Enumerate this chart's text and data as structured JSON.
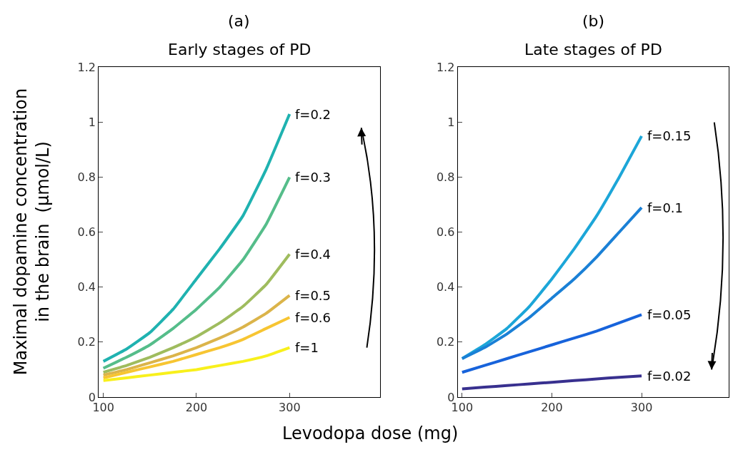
{
  "chart_data": [
    {
      "type": "line",
      "title": "(a)",
      "subtitle": "Early stages of PD",
      "xlabel": "Levodopa dose (mg)",
      "ylabel": "Maximal dopamine concentration\nin the brain  (μmol/L)",
      "x": [
        100,
        125,
        150,
        175,
        200,
        225,
        250,
        275,
        300
      ],
      "series": [
        {
          "name": "f=0.2",
          "color": "#1fb2b0",
          "values": [
            0.13,
            0.175,
            0.235,
            0.32,
            0.43,
            0.54,
            0.66,
            0.83,
            1.03
          ]
        },
        {
          "name": "f=0.3",
          "color": "#55bd8a",
          "values": [
            0.105,
            0.145,
            0.19,
            0.25,
            0.32,
            0.4,
            0.5,
            0.63,
            0.8
          ]
        },
        {
          "name": "f=0.4",
          "color": "#9fbc5e",
          "values": [
            0.09,
            0.115,
            0.145,
            0.18,
            0.22,
            0.27,
            0.33,
            0.41,
            0.52
          ]
        },
        {
          "name": "f=0.5",
          "color": "#dbb44a",
          "values": [
            0.08,
            0.1,
            0.125,
            0.15,
            0.18,
            0.215,
            0.255,
            0.305,
            0.37
          ]
        },
        {
          "name": "f=0.6",
          "color": "#f7c532",
          "values": [
            0.07,
            0.09,
            0.11,
            0.13,
            0.155,
            0.18,
            0.21,
            0.25,
            0.29
          ]
        },
        {
          "name": "f=1",
          "color": "#f8f01c",
          "values": [
            0.06,
            0.07,
            0.08,
            0.09,
            0.1,
            0.115,
            0.13,
            0.15,
            0.18
          ]
        }
      ],
      "xlim": [
        95,
        397
      ],
      "xticks": [
        100,
        200,
        300
      ],
      "ylim": [
        0,
        1.2
      ],
      "yticks": [
        0,
        0.2,
        0.4,
        0.6,
        0.8,
        1,
        1.2
      ]
    },
    {
      "type": "line",
      "title": "(b)",
      "subtitle": "Late stages of PD",
      "x": [
        100,
        125,
        150,
        175,
        200,
        225,
        250,
        275,
        300
      ],
      "series": [
        {
          "name": "f=0.15",
          "color": "#1ca6d8",
          "values": [
            0.14,
            0.19,
            0.25,
            0.33,
            0.43,
            0.54,
            0.66,
            0.8,
            0.95
          ]
        },
        {
          "name": "f=0.1",
          "color": "#1a80d6",
          "values": [
            0.14,
            0.18,
            0.23,
            0.29,
            0.36,
            0.43,
            0.51,
            0.6,
            0.69
          ]
        },
        {
          "name": "f=0.05",
          "color": "#1763db",
          "values": [
            0.09,
            0.115,
            0.14,
            0.165,
            0.19,
            0.215,
            0.24,
            0.27,
            0.3
          ]
        },
        {
          "name": "f=0.02",
          "color": "#38308f",
          "values": [
            0.03,
            0.036,
            0.042,
            0.048,
            0.054,
            0.06,
            0.066,
            0.072,
            0.077
          ]
        }
      ],
      "xlim": [
        95,
        397
      ],
      "xticks": [
        100,
        200,
        300
      ],
      "ylim": [
        0,
        1.2
      ],
      "yticks": [
        0,
        0.2,
        0.4,
        0.6,
        0.8,
        1,
        1.2
      ]
    }
  ]
}
